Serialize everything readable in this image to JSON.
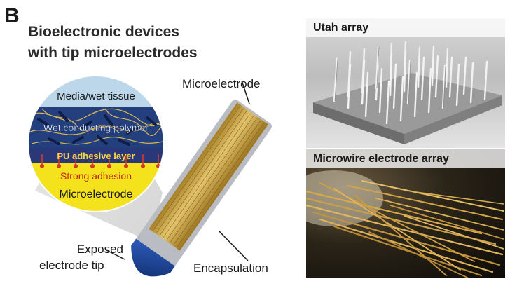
{
  "panel": {
    "letter": "B",
    "title_line1": "Bioelectronic devices",
    "title_line2": "with tip microelectrodes"
  },
  "circle_layers": {
    "media": "Media/wet tissue",
    "polymer": "Wet conducting polymer",
    "adhesive": "PU adhesive layer",
    "adhesion": "Strong adhesion",
    "electrode": "Microelectrode"
  },
  "callouts": {
    "microelectrode": "Microelectrode",
    "exposed_line1": "Exposed",
    "exposed_line2": "electrode tip",
    "encapsulation": "Encapsulation"
  },
  "photos": {
    "utah_label": "Utah array",
    "microwire_label": "Microwire electrode array"
  },
  "colors": {
    "media_blue": "#bcd7ea",
    "polymer_navy": "#1d3a78",
    "adhesive_red": "#d23a26",
    "electrode_yellow": "#f5e31a",
    "probe_gold": "#c9a23a",
    "tip_blue": "#173c8c"
  }
}
